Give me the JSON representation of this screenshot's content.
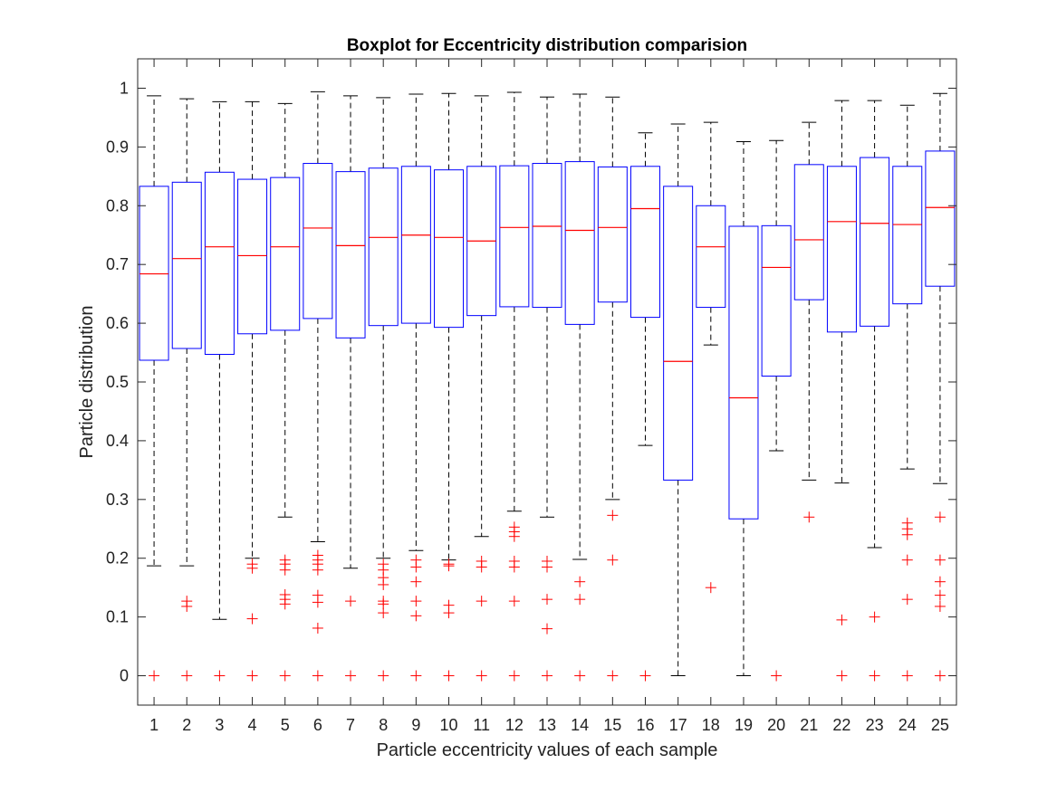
{
  "chart_data": {
    "type": "boxplot",
    "title": "Boxplot for Eccentricity distribution comparision",
    "xlabel": "Particle eccentricity values of each sample",
    "ylabel": "Particle distribution",
    "ylim": [
      -0.05,
      1.05
    ],
    "yticks": [
      0,
      0.1,
      0.2,
      0.3,
      0.4,
      0.5,
      0.6,
      0.7,
      0.8,
      0.9,
      1
    ],
    "ytick_labels": [
      "0",
      "0.1",
      "0.2",
      "0.3",
      "0.4",
      "0.5",
      "0.6",
      "0.7",
      "0.8",
      "0.9",
      "1"
    ],
    "categories": [
      "1",
      "2",
      "3",
      "4",
      "5",
      "6",
      "7",
      "8",
      "9",
      "10",
      "11",
      "12",
      "13",
      "14",
      "15",
      "16",
      "17",
      "18",
      "19",
      "20",
      "21",
      "22",
      "23",
      "24",
      "25"
    ],
    "colors": {
      "box": "#0000ff",
      "median": "#ff0000",
      "whisker": "#000000",
      "outlier": "#ff0000"
    },
    "grid": false,
    "boxes": [
      {
        "lw": 0.187,
        "q1": 0.537,
        "med": 0.684,
        "q3": 0.833,
        "uw": 0.987,
        "outliers": [
          0
        ]
      },
      {
        "lw": 0.187,
        "q1": 0.557,
        "med": 0.71,
        "q3": 0.84,
        "uw": 0.982,
        "outliers": [
          0,
          0.118,
          0.127
        ]
      },
      {
        "lw": 0.096,
        "q1": 0.547,
        "med": 0.73,
        "q3": 0.857,
        "uw": 0.977,
        "outliers": [
          0
        ]
      },
      {
        "lw": 0.2,
        "q1": 0.582,
        "med": 0.715,
        "q3": 0.845,
        "uw": 0.977,
        "outliers": [
          0,
          0.097,
          0.183,
          0.19
        ]
      },
      {
        "lw": 0.27,
        "q1": 0.588,
        "med": 0.73,
        "q3": 0.848,
        "uw": 0.974,
        "outliers": [
          0,
          0.122,
          0.13,
          0.138,
          0.18,
          0.19,
          0.197
        ]
      },
      {
        "lw": 0.228,
        "q1": 0.608,
        "med": 0.762,
        "q3": 0.872,
        "uw": 0.994,
        "outliers": [
          0,
          0.081,
          0.125,
          0.137,
          0.18,
          0.19,
          0.197,
          0.205
        ]
      },
      {
        "lw": 0.183,
        "q1": 0.575,
        "med": 0.732,
        "q3": 0.858,
        "uw": 0.987,
        "outliers": [
          0,
          0.127
        ]
      },
      {
        "lw": 0.2,
        "q1": 0.596,
        "med": 0.746,
        "q3": 0.864,
        "uw": 0.984,
        "outliers": [
          0,
          0.107,
          0.122,
          0.127,
          0.155,
          0.167,
          0.18,
          0.19
        ]
      },
      {
        "lw": 0.213,
        "q1": 0.6,
        "med": 0.75,
        "q3": 0.867,
        "uw": 0.99,
        "outliers": [
          0,
          0.102,
          0.127,
          0.16,
          0.185,
          0.197
        ]
      },
      {
        "lw": 0.197,
        "q1": 0.593,
        "med": 0.746,
        "q3": 0.861,
        "uw": 0.991,
        "outliers": [
          0,
          0.107,
          0.12,
          0.187,
          0.19
        ]
      },
      {
        "lw": 0.237,
        "q1": 0.613,
        "med": 0.74,
        "q3": 0.867,
        "uw": 0.987,
        "outliers": [
          0,
          0.127,
          0.185,
          0.195
        ]
      },
      {
        "lw": 0.28,
        "q1": 0.628,
        "med": 0.763,
        "q3": 0.868,
        "uw": 0.993,
        "outliers": [
          0,
          0.127,
          0.185,
          0.195,
          0.237,
          0.245,
          0.253
        ]
      },
      {
        "lw": 0.27,
        "q1": 0.627,
        "med": 0.765,
        "q3": 0.872,
        "uw": 0.985,
        "outliers": [
          0,
          0.08,
          0.13,
          0.185,
          0.195
        ]
      },
      {
        "lw": 0.198,
        "q1": 0.598,
        "med": 0.758,
        "q3": 0.875,
        "uw": 0.99,
        "outliers": [
          0,
          0.13,
          0.16
        ]
      },
      {
        "lw": 0.3,
        "q1": 0.636,
        "med": 0.763,
        "q3": 0.866,
        "uw": 0.985,
        "outliers": [
          0,
          0.197,
          0.273
        ]
      },
      {
        "lw": 0.392,
        "q1": 0.61,
        "med": 0.795,
        "q3": 0.867,
        "uw": 0.924,
        "outliers": [
          0
        ]
      },
      {
        "lw": 0.0,
        "q1": 0.333,
        "med": 0.535,
        "q3": 0.833,
        "uw": 0.939,
        "outliers": []
      },
      {
        "lw": 0.563,
        "q1": 0.627,
        "med": 0.73,
        "q3": 0.8,
        "uw": 0.942,
        "outliers": [
          0.15
        ]
      },
      {
        "lw": 0.0,
        "q1": 0.267,
        "med": 0.473,
        "q3": 0.765,
        "uw": 0.909,
        "outliers": []
      },
      {
        "lw": 0.383,
        "q1": 0.51,
        "med": 0.695,
        "q3": 0.766,
        "uw": 0.911,
        "outliers": [
          0
        ]
      },
      {
        "lw": 0.333,
        "q1": 0.64,
        "med": 0.742,
        "q3": 0.87,
        "uw": 0.942,
        "outliers": [
          0.27
        ]
      },
      {
        "lw": 0.328,
        "q1": 0.585,
        "med": 0.773,
        "q3": 0.867,
        "uw": 0.979,
        "outliers": [
          0,
          0.095
        ]
      },
      {
        "lw": 0.218,
        "q1": 0.595,
        "med": 0.77,
        "q3": 0.882,
        "uw": 0.979,
        "outliers": [
          0,
          0.1
        ]
      },
      {
        "lw": 0.352,
        "q1": 0.633,
        "med": 0.768,
        "q3": 0.867,
        "uw": 0.971,
        "outliers": [
          0,
          0.13,
          0.197,
          0.24,
          0.25,
          0.26
        ]
      },
      {
        "lw": 0.327,
        "q1": 0.663,
        "med": 0.797,
        "q3": 0.893,
        "uw": 0.991,
        "outliers": [
          0,
          0.118,
          0.137,
          0.16,
          0.197,
          0.27
        ]
      }
    ]
  }
}
